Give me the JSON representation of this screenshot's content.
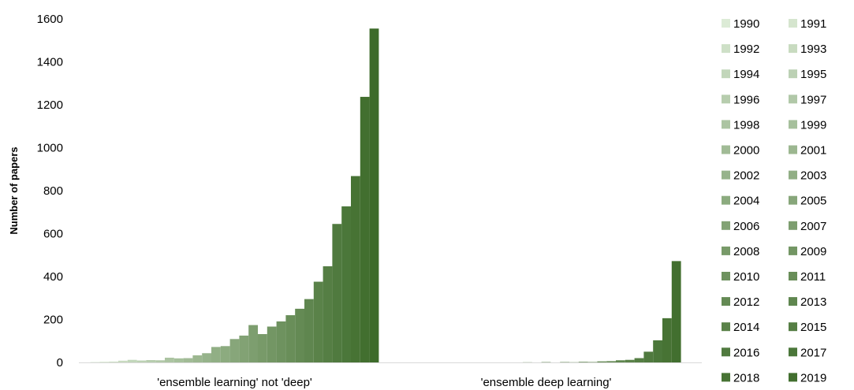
{
  "chart_data": {
    "type": "bar",
    "categories": [
      "'ensemble learning' not 'deep'",
      "'ensemble deep learning'"
    ],
    "ylabel": "Number of papers",
    "xlabel": "",
    "ylim": [
      0,
      1600
    ],
    "yticks": [
      0,
      200,
      400,
      600,
      800,
      1000,
      1200,
      1400,
      1600
    ],
    "grid": false,
    "legend_position": "right",
    "color_start": "#dcebd6",
    "color_end": "#3d6b2a",
    "series": [
      {
        "name": "1990",
        "values": [
          2,
          0
        ]
      },
      {
        "name": "1991",
        "values": [
          3,
          0
        ]
      },
      {
        "name": "1992",
        "values": [
          4,
          0
        ]
      },
      {
        "name": "1993",
        "values": [
          8,
          0
        ]
      },
      {
        "name": "1994",
        "values": [
          12,
          0
        ]
      },
      {
        "name": "1995",
        "values": [
          9,
          0
        ]
      },
      {
        "name": "1996",
        "values": [
          11,
          0
        ]
      },
      {
        "name": "1997",
        "values": [
          10,
          0
        ]
      },
      {
        "name": "1998",
        "values": [
          22,
          0
        ]
      },
      {
        "name": "1999",
        "values": [
          19,
          0
        ]
      },
      {
        "name": "2000",
        "values": [
          20,
          0
        ]
      },
      {
        "name": "2001",
        "values": [
          33,
          0
        ]
      },
      {
        "name": "2002",
        "values": [
          43,
          0
        ]
      },
      {
        "name": "2003",
        "values": [
          72,
          1
        ]
      },
      {
        "name": "2004",
        "values": [
          76,
          0
        ]
      },
      {
        "name": "2005",
        "values": [
          109,
          2
        ]
      },
      {
        "name": "2006",
        "values": [
          125,
          0
        ]
      },
      {
        "name": "2007",
        "values": [
          174,
          2
        ]
      },
      {
        "name": "2008",
        "values": [
          132,
          1
        ]
      },
      {
        "name": "2009",
        "values": [
          167,
          3
        ]
      },
      {
        "name": "2010",
        "values": [
          191,
          2
        ]
      },
      {
        "name": "2011",
        "values": [
          220,
          5
        ]
      },
      {
        "name": "2012",
        "values": [
          250,
          6
        ]
      },
      {
        "name": "2013",
        "values": [
          295,
          10
        ]
      },
      {
        "name": "2014",
        "values": [
          376,
          12
        ]
      },
      {
        "name": "2015",
        "values": [
          448,
          20
        ]
      },
      {
        "name": "2016",
        "values": [
          645,
          50
        ]
      },
      {
        "name": "2017",
        "values": [
          727,
          103
        ]
      },
      {
        "name": "2018",
        "values": [
          868,
          206
        ]
      },
      {
        "name": "2019",
        "values": [
          1237,
          472
        ]
      },
      {
        "name": "",
        "values": [
          1555,
          0
        ]
      }
    ]
  }
}
